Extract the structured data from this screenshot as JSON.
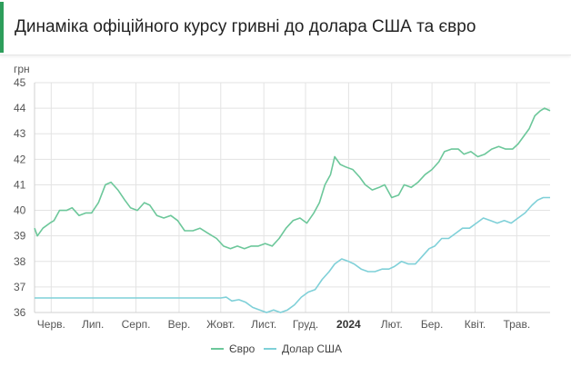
{
  "header": {
    "title": "Динаміка офіційного курсу гривні до долара США та євро"
  },
  "chart_data": {
    "type": "line",
    "title": "Динаміка офіційного курсу гривні до долара США та євро",
    "ylabel": "грн",
    "xlabel": "",
    "ylim": [
      36,
      45
    ],
    "yticks": [
      36,
      37,
      38,
      39,
      40,
      41,
      42,
      43,
      44,
      45
    ],
    "x_ticks": [
      {
        "label": "Черв.",
        "date": "2023-06-01",
        "bold": false
      },
      {
        "label": "Лип.",
        "date": "2023-07-01",
        "bold": false
      },
      {
        "label": "Серп.",
        "date": "2023-08-01",
        "bold": false
      },
      {
        "label": "Вер.",
        "date": "2023-09-01",
        "bold": false
      },
      {
        "label": "Жовт.",
        "date": "2023-10-01",
        "bold": false
      },
      {
        "label": "Лист.",
        "date": "2023-11-01",
        "bold": false
      },
      {
        "label": "Груд.",
        "date": "2023-12-01",
        "bold": false
      },
      {
        "label": "2024",
        "date": "2024-01-01",
        "bold": true
      },
      {
        "label": "Лют.",
        "date": "2024-02-01",
        "bold": false
      },
      {
        "label": "Бер.",
        "date": "2024-03-01",
        "bold": false
      },
      {
        "label": "Квіт.",
        "date": "2024-04-01",
        "bold": false
      },
      {
        "label": "Трав.",
        "date": "2024-05-01",
        "bold": false
      }
    ],
    "xlim": [
      "2023-05-20",
      "2024-05-25"
    ],
    "grid": true,
    "legend": "bottom",
    "series": [
      {
        "name": "Євро",
        "color": "#6cc79a",
        "points": [
          [
            "2023-05-20",
            39.3
          ],
          [
            "2023-05-22",
            39.0
          ],
          [
            "2023-05-26",
            39.3
          ],
          [
            "2023-05-31",
            39.5
          ],
          [
            "2023-06-03",
            39.6
          ],
          [
            "2023-06-07",
            40.0
          ],
          [
            "2023-06-12",
            40.0
          ],
          [
            "2023-06-16",
            40.1
          ],
          [
            "2023-06-21",
            39.8
          ],
          [
            "2023-06-26",
            39.9
          ],
          [
            "2023-06-30",
            39.9
          ],
          [
            "2023-07-05",
            40.3
          ],
          [
            "2023-07-10",
            41.0
          ],
          [
            "2023-07-14",
            41.1
          ],
          [
            "2023-07-19",
            40.8
          ],
          [
            "2023-07-24",
            40.4
          ],
          [
            "2023-07-28",
            40.1
          ],
          [
            "2023-08-02",
            40.0
          ],
          [
            "2023-08-07",
            40.3
          ],
          [
            "2023-08-11",
            40.2
          ],
          [
            "2023-08-16",
            39.8
          ],
          [
            "2023-08-21",
            39.7
          ],
          [
            "2023-08-26",
            39.8
          ],
          [
            "2023-08-31",
            39.6
          ],
          [
            "2023-09-05",
            39.2
          ],
          [
            "2023-09-11",
            39.2
          ],
          [
            "2023-09-16",
            39.3
          ],
          [
            "2023-09-22",
            39.1
          ],
          [
            "2023-09-28",
            38.9
          ],
          [
            "2023-10-03",
            38.6
          ],
          [
            "2023-10-08",
            38.5
          ],
          [
            "2023-10-13",
            38.6
          ],
          [
            "2023-10-18",
            38.5
          ],
          [
            "2023-10-23",
            38.6
          ],
          [
            "2023-10-28",
            38.6
          ],
          [
            "2023-11-02",
            38.7
          ],
          [
            "2023-11-07",
            38.6
          ],
          [
            "2023-11-12",
            38.9
          ],
          [
            "2023-11-17",
            39.3
          ],
          [
            "2023-11-22",
            39.6
          ],
          [
            "2023-11-27",
            39.7
          ],
          [
            "2023-12-02",
            39.5
          ],
          [
            "2023-12-07",
            39.9
          ],
          [
            "2023-12-11",
            40.3
          ],
          [
            "2023-12-15",
            41.0
          ],
          [
            "2023-12-19",
            41.4
          ],
          [
            "2023-12-22",
            42.1
          ],
          [
            "2023-12-26",
            41.8
          ],
          [
            "2023-12-30",
            41.7
          ],
          [
            "2024-01-04",
            41.6
          ],
          [
            "2024-01-09",
            41.3
          ],
          [
            "2024-01-13",
            41.0
          ],
          [
            "2024-01-18",
            40.8
          ],
          [
            "2024-01-23",
            40.9
          ],
          [
            "2024-01-27",
            41.0
          ],
          [
            "2024-02-01",
            40.5
          ],
          [
            "2024-02-06",
            40.6
          ],
          [
            "2024-02-10",
            41.0
          ],
          [
            "2024-02-15",
            40.9
          ],
          [
            "2024-02-20",
            41.1
          ],
          [
            "2024-02-25",
            41.4
          ],
          [
            "2024-03-01",
            41.6
          ],
          [
            "2024-03-06",
            41.9
          ],
          [
            "2024-03-10",
            42.3
          ],
          [
            "2024-03-15",
            42.4
          ],
          [
            "2024-03-20",
            42.4
          ],
          [
            "2024-03-24",
            42.2
          ],
          [
            "2024-03-29",
            42.3
          ],
          [
            "2024-04-03",
            42.1
          ],
          [
            "2024-04-08",
            42.2
          ],
          [
            "2024-04-13",
            42.4
          ],
          [
            "2024-04-18",
            42.5
          ],
          [
            "2024-04-23",
            42.4
          ],
          [
            "2024-04-28",
            42.4
          ],
          [
            "2024-05-02",
            42.6
          ],
          [
            "2024-05-06",
            42.9
          ],
          [
            "2024-05-10",
            43.2
          ],
          [
            "2024-05-14",
            43.7
          ],
          [
            "2024-05-18",
            43.9
          ],
          [
            "2024-05-21",
            44.0
          ],
          [
            "2024-05-25",
            43.9
          ]
        ]
      },
      {
        "name": "Долар США",
        "color": "#7fd0d8",
        "points": [
          [
            "2023-05-20",
            36.57
          ],
          [
            "2023-07-01",
            36.57
          ],
          [
            "2023-08-01",
            36.57
          ],
          [
            "2023-09-01",
            36.57
          ],
          [
            "2023-10-01",
            36.57
          ],
          [
            "2023-10-05",
            36.6
          ],
          [
            "2023-10-09",
            36.45
          ],
          [
            "2023-10-14",
            36.5
          ],
          [
            "2023-10-19",
            36.4
          ],
          [
            "2023-10-24",
            36.2
          ],
          [
            "2023-10-29",
            36.1
          ],
          [
            "2023-11-03",
            36.0
          ],
          [
            "2023-11-08",
            36.1
          ],
          [
            "2023-11-13",
            36.0
          ],
          [
            "2023-11-18",
            36.1
          ],
          [
            "2023-11-23",
            36.3
          ],
          [
            "2023-11-28",
            36.6
          ],
          [
            "2023-12-03",
            36.8
          ],
          [
            "2023-12-08",
            36.9
          ],
          [
            "2023-12-13",
            37.3
          ],
          [
            "2023-12-18",
            37.6
          ],
          [
            "2023-12-22",
            37.9
          ],
          [
            "2023-12-27",
            38.1
          ],
          [
            "2024-01-01",
            38.0
          ],
          [
            "2024-01-05",
            37.9
          ],
          [
            "2024-01-10",
            37.7
          ],
          [
            "2024-01-15",
            37.6
          ],
          [
            "2024-01-20",
            37.6
          ],
          [
            "2024-01-25",
            37.7
          ],
          [
            "2024-01-30",
            37.7
          ],
          [
            "2024-02-03",
            37.8
          ],
          [
            "2024-02-08",
            38.0
          ],
          [
            "2024-02-13",
            37.9
          ],
          [
            "2024-02-18",
            37.9
          ],
          [
            "2024-02-23",
            38.2
          ],
          [
            "2024-02-28",
            38.5
          ],
          [
            "2024-03-03",
            38.6
          ],
          [
            "2024-03-08",
            38.9
          ],
          [
            "2024-03-13",
            38.9
          ],
          [
            "2024-03-18",
            39.1
          ],
          [
            "2024-03-23",
            39.3
          ],
          [
            "2024-03-28",
            39.3
          ],
          [
            "2024-04-02",
            39.5
          ],
          [
            "2024-04-07",
            39.7
          ],
          [
            "2024-04-12",
            39.6
          ],
          [
            "2024-04-17",
            39.5
          ],
          [
            "2024-04-22",
            39.6
          ],
          [
            "2024-04-27",
            39.5
          ],
          [
            "2024-05-02",
            39.7
          ],
          [
            "2024-05-07",
            39.9
          ],
          [
            "2024-05-12",
            40.2
          ],
          [
            "2024-05-16",
            40.4
          ],
          [
            "2024-05-20",
            40.5
          ],
          [
            "2024-05-25",
            40.5
          ]
        ]
      }
    ]
  }
}
